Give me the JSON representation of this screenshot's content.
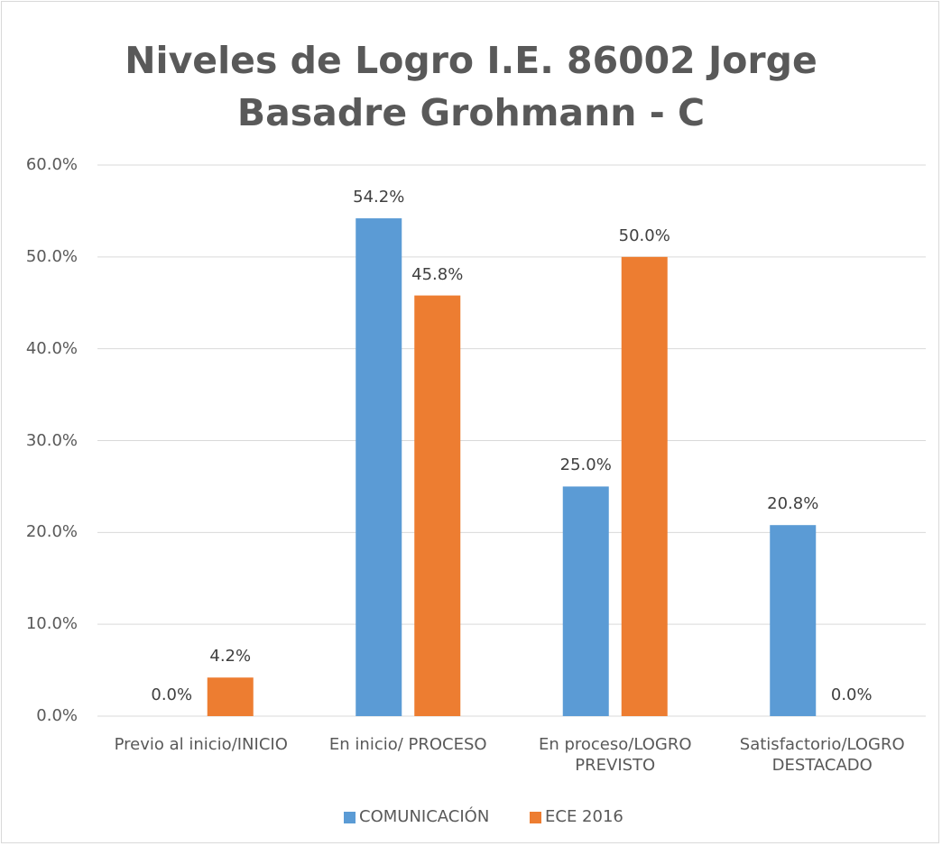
{
  "chart_data": {
    "type": "bar",
    "title": "Niveles de Logro I.E. 86002 Jorge Basadre Grohmann - C",
    "categories": [
      "Previo al inicio/INICIO",
      "En inicio/ PROCESO",
      "En proceso/LOGRO PREVISTO",
      "Satisfactorio/LOGRO DESTACADO"
    ],
    "series": [
      {
        "name": "COMUNICACIÓN",
        "color": "#5b9bd5",
        "values": [
          0,
          54.2,
          25,
          20.8
        ],
        "value_labels": [
          "0.0%",
          "54.2%",
          "25.0%",
          "20.8%"
        ]
      },
      {
        "name": "ECE 2016",
        "color": "#ed7d31",
        "values": [
          4.2,
          45.8,
          50,
          0
        ],
        "value_labels": [
          "4.2%",
          "45.8%",
          "50.0%",
          "0.0%"
        ]
      }
    ],
    "ylim": [
      0,
      60
    ],
    "yticks": [
      {
        "value": 0,
        "label": "0.0%"
      },
      {
        "value": 10,
        "label": "10.0%"
      },
      {
        "value": 20,
        "label": "20.0%"
      },
      {
        "value": 30,
        "label": "30.0%"
      },
      {
        "value": 40,
        "label": "40.0%"
      },
      {
        "value": 50,
        "label": "50.0%"
      },
      {
        "value": 60,
        "label": "60.0%"
      }
    ],
    "grid": true,
    "legend": "bottom"
  }
}
